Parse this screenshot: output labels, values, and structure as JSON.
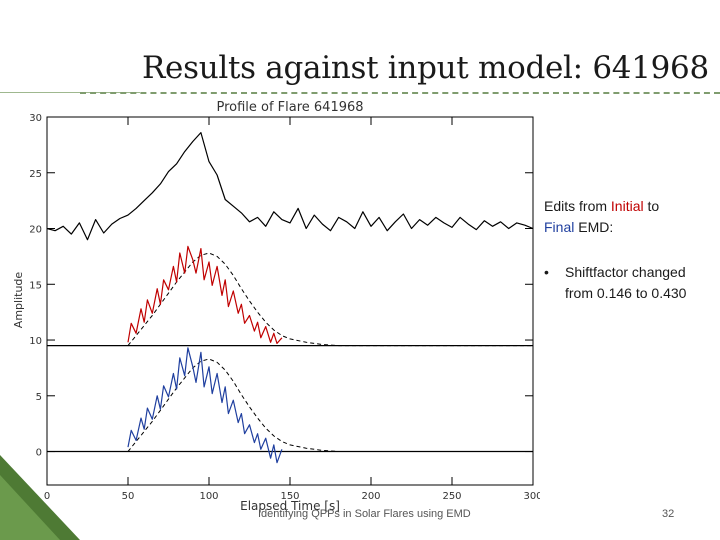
{
  "slide": {
    "title": "Results against input model: 641968",
    "notes_line1_pre": "Edits from ",
    "notes_initial": "Initial",
    "notes_line1_post": " to",
    "notes_final": "Final",
    "notes_line2_post": " EMD:",
    "bullet_symbol": "•",
    "bullet_pre": "Shiftfactor changed from ",
    "bullet_initial_value": "0.146",
    "bullet_mid": " to ",
    "bullet_final_value": "0.430",
    "footer": "Identifying QPPs in Solar Flares using EMD",
    "page_number": "32"
  },
  "colors": {
    "initial": "#c00000",
    "final": "#1f3f9f",
    "data": "#000000",
    "accent_green": "#5a8a3c"
  },
  "chart_data": {
    "type": "line",
    "title": "Profile of Flare 641968",
    "xlabel": "Elapsed Time [s]",
    "ylabel": "Amplitude",
    "xlim": [
      0,
      300
    ],
    "ylim": [
      -3,
      30
    ],
    "x_ticks": [
      0,
      50,
      100,
      150,
      200,
      250,
      300
    ],
    "y_ticks": [
      0,
      5,
      10,
      15,
      20,
      25,
      30
    ],
    "grid": false,
    "series": [
      {
        "name": "",
        "color": "black",
        "style": "solid",
        "x": [
          0,
          5,
          10,
          15,
          20,
          25,
          30,
          35,
          40,
          45,
          50,
          55,
          60,
          65,
          70,
          75,
          80,
          85,
          90,
          95,
          100,
          105,
          110,
          115,
          120,
          125,
          130,
          135,
          140,
          145,
          150,
          155,
          160,
          165,
          170,
          175,
          180,
          185,
          190,
          195,
          200,
          205,
          210,
          215,
          220,
          225,
          230,
          235,
          240,
          245,
          250,
          255,
          260,
          265,
          270,
          275,
          280,
          285,
          290,
          295,
          300
        ],
        "y": [
          20.0,
          19.8,
          20.2,
          19.5,
          20.5,
          19.0,
          20.8,
          19.6,
          20.4,
          20.9,
          21.2,
          21.8,
          22.5,
          23.2,
          24.0,
          25.1,
          25.8,
          26.9,
          27.8,
          28.6,
          26.0,
          24.8,
          22.6,
          22.0,
          21.4,
          20.6,
          21.0,
          20.2,
          21.5,
          20.8,
          20.5,
          21.8,
          20.0,
          21.2,
          20.4,
          19.8,
          21.0,
          20.6,
          20.0,
          21.5,
          20.2,
          21.0,
          19.8,
          20.6,
          21.3,
          20.0,
          20.8,
          20.3,
          21.0,
          20.5,
          20.1,
          21.0,
          20.4,
          19.9,
          20.7,
          20.2,
          20.6,
          20.0,
          20.5,
          20.3,
          20.0
        ]
      },
      {
        "name": "",
        "color": "black",
        "style": "dashed",
        "x": [
          50,
          55,
          60,
          65,
          70,
          75,
          80,
          85,
          90,
          95,
          100,
          105,
          110,
          115,
          120,
          125,
          130,
          135,
          140,
          145,
          150,
          160,
          170,
          180,
          190,
          200,
          220,
          240,
          260,
          280,
          300
        ],
        "y": [
          9.5,
          10.4,
          11.3,
          12.2,
          13.2,
          14.2,
          15.2,
          16.1,
          17.0,
          17.6,
          17.8,
          17.5,
          16.8,
          15.8,
          14.6,
          13.5,
          12.5,
          11.6,
          10.9,
          10.4,
          10.1,
          9.8,
          9.6,
          9.5,
          9.5,
          9.5,
          9.5,
          9.5,
          9.5,
          9.5,
          9.5
        ]
      },
      {
        "name": "",
        "color": "black",
        "style": "solid",
        "x": [
          0,
          50,
          100,
          150,
          200,
          250,
          300
        ],
        "y": [
          9.5,
          9.5,
          9.5,
          9.5,
          9.5,
          9.5,
          9.5
        ]
      },
      {
        "name": "",
        "color": "red",
        "style": "solid",
        "x": [
          50,
          52,
          55,
          58,
          60,
          62,
          65,
          68,
          70,
          72,
          75,
          78,
          80,
          82,
          85,
          87,
          90,
          92,
          95,
          97,
          100,
          102,
          105,
          108,
          110,
          112,
          115,
          118,
          120,
          122,
          125,
          128,
          130,
          132,
          135,
          138,
          140,
          142,
          145
        ],
        "y": [
          9.8,
          11.5,
          10.6,
          12.8,
          11.6,
          13.6,
          12.4,
          14.6,
          13.2,
          15.4,
          14.5,
          16.6,
          15.2,
          17.8,
          16.0,
          18.4,
          17.2,
          16.0,
          18.2,
          15.4,
          17.0,
          14.9,
          16.6,
          14.0,
          15.4,
          13.0,
          14.4,
          12.4,
          13.2,
          11.5,
          12.2,
          10.8,
          11.6,
          10.2,
          11.2,
          9.8,
          10.6,
          9.7,
          10.2
        ]
      },
      {
        "name": "",
        "color": "black",
        "style": "dashed",
        "x": [
          50,
          55,
          60,
          65,
          70,
          75,
          80,
          85,
          90,
          95,
          100,
          105,
          110,
          115,
          120,
          125,
          130,
          135,
          140,
          145,
          150,
          160,
          170,
          180,
          190,
          200,
          220,
          240,
          260,
          280,
          300
        ],
        "y": [
          0.0,
          0.9,
          1.8,
          2.7,
          3.7,
          4.7,
          5.7,
          6.6,
          7.5,
          8.1,
          8.3,
          8.0,
          7.3,
          6.3,
          5.1,
          4.0,
          3.0,
          2.1,
          1.4,
          0.9,
          0.6,
          0.3,
          0.1,
          0.0,
          0.0,
          0.0,
          0.0,
          0.0,
          0.0,
          0.0,
          0.0
        ]
      },
      {
        "name": "",
        "color": "black",
        "style": "solid",
        "x": [
          0,
          50,
          100,
          150,
          200,
          250,
          300
        ],
        "y": [
          0.0,
          0.0,
          0.0,
          0.0,
          0.0,
          0.0,
          0.0
        ]
      },
      {
        "name": "",
        "color": "blue",
        "style": "solid",
        "x": [
          50,
          52,
          55,
          58,
          60,
          62,
          65,
          68,
          70,
          72,
          75,
          78,
          80,
          82,
          85,
          87,
          90,
          92,
          95,
          97,
          100,
          102,
          105,
          108,
          110,
          112,
          115,
          118,
          120,
          122,
          125,
          128,
          130,
          132,
          135,
          138,
          140,
          142,
          145
        ],
        "y": [
          0.4,
          1.9,
          1.0,
          3.0,
          2.0,
          3.9,
          2.9,
          5.0,
          3.8,
          5.9,
          4.9,
          7.0,
          5.6,
          8.4,
          6.8,
          9.3,
          7.6,
          6.2,
          8.9,
          5.8,
          7.6,
          5.2,
          7.0,
          4.4,
          5.8,
          3.4,
          4.6,
          2.6,
          3.4,
          1.6,
          2.4,
          0.8,
          1.6,
          0.2,
          1.2,
          -0.6,
          0.6,
          -1.0,
          0.2
        ]
      }
    ]
  }
}
